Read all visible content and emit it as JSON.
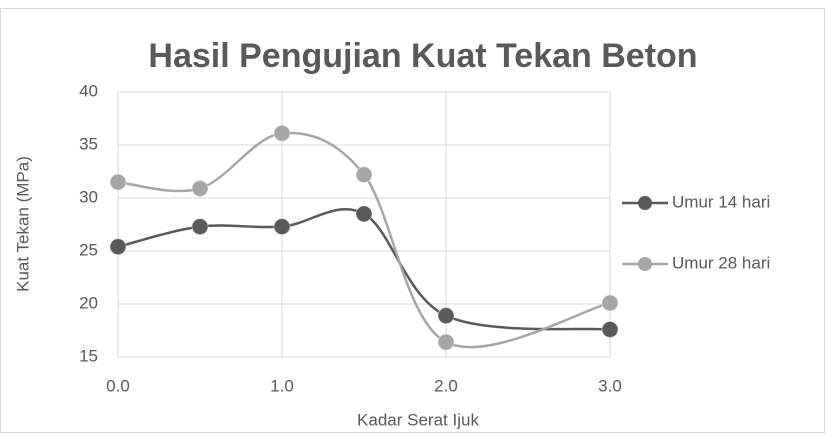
{
  "chart_data": {
    "type": "line",
    "title": "Hasil Pengujian Kuat Tekan Beton",
    "x_label": "Kadar Serat Ijuk",
    "y_label": "Kuat Tekan (MPa)",
    "x": [
      0,
      0.5,
      1.0,
      1.5,
      2.0,
      3.0
    ],
    "series": [
      {
        "name": "Umur 14 hari",
        "color": "#595959",
        "values": [
          25.4,
          27.3,
          27.3,
          28.5,
          18.9,
          17.6
        ]
      },
      {
        "name": "Umur 28 hari",
        "color": "#a6a6a6",
        "values": [
          31.5,
          30.9,
          36.1,
          32.2,
          16.4,
          20.1
        ]
      }
    ],
    "xlim": [
      0,
      3
    ],
    "xticks": [
      {
        "value": 0,
        "label": "0.0"
      },
      {
        "value": 1,
        "label": "1.0"
      },
      {
        "value": 2,
        "label": "2.0"
      },
      {
        "value": 3,
        "label": "3.0"
      }
    ],
    "ylim": [
      15,
      40
    ],
    "yticks": [
      15,
      20,
      25,
      30,
      35,
      40
    ],
    "grid": true,
    "smooth": true,
    "legend": "right"
  }
}
